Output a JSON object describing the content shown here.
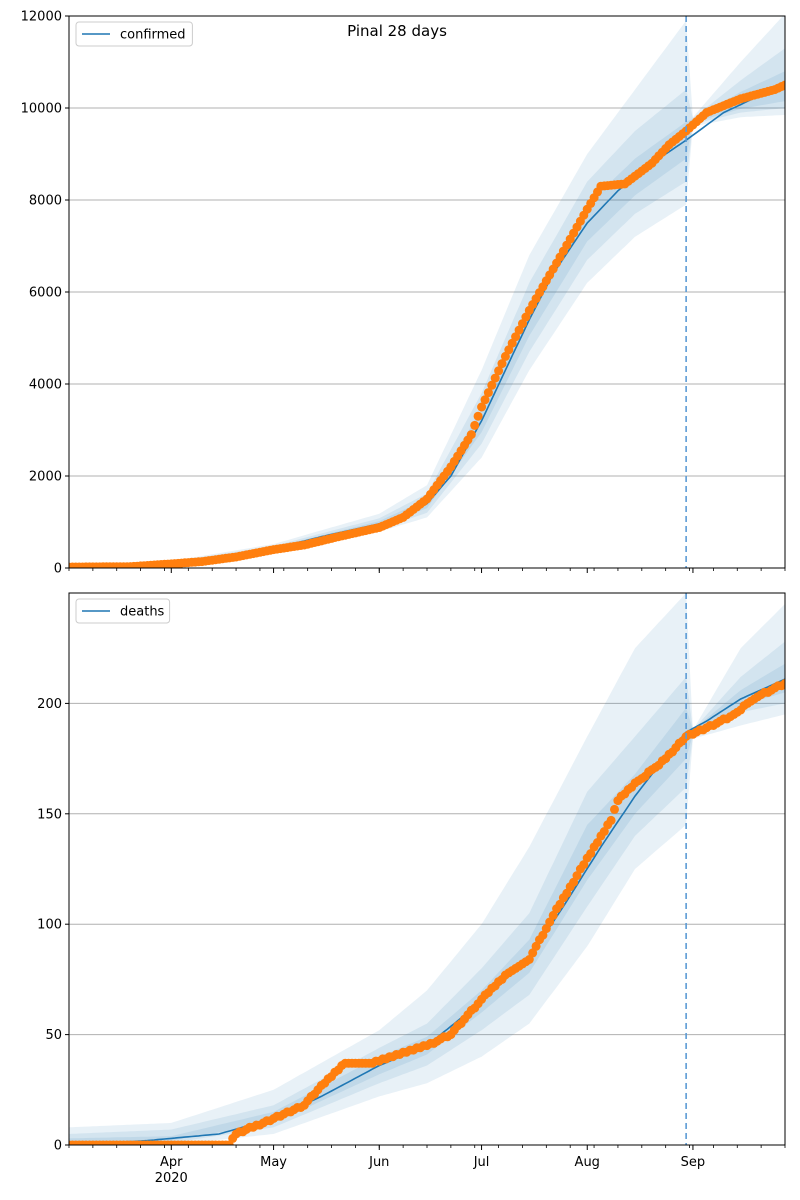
{
  "colors": {
    "model": "#1f77b4",
    "observed": "#ff7f0e",
    "grid": "#b0b0b0",
    "forecast_line": "#5b9bd5"
  },
  "chart_data": [
    {
      "type": "line",
      "title": "Pinal 28 days",
      "legend": "confirmed",
      "legend_position": "top-left",
      "grid": "horizontal",
      "ylim": [
        0,
        12000
      ],
      "yticks": [
        "0",
        "2000",
        "4000",
        "6000",
        "8000",
        "10000",
        "12000"
      ],
      "x_start": "2020-03-02",
      "x_end": "2020-09-28",
      "forecast_start": "2020-08-30",
      "xticks": [
        {
          "date": "2020-04-01",
          "label": "Apr"
        },
        {
          "date": "2020-05-01",
          "label": "May"
        },
        {
          "date": "2020-06-01",
          "label": "Jun"
        },
        {
          "date": "2020-07-01",
          "label": "Jul"
        },
        {
          "date": "2020-08-01",
          "label": "Aug"
        },
        {
          "date": "2020-09-01",
          "label": "Sep"
        }
      ],
      "year_label": "2020",
      "model_knots": [
        [
          "2020-03-02",
          0
        ],
        [
          "2020-04-01",
          100
        ],
        [
          "2020-04-15",
          180
        ],
        [
          "2020-05-01",
          420
        ],
        [
          "2020-05-15",
          680
        ],
        [
          "2020-06-01",
          960
        ],
        [
          "2020-06-08",
          1100
        ],
        [
          "2020-06-15",
          1400
        ],
        [
          "2020-06-22",
          2000
        ],
        [
          "2020-07-01",
          3200
        ],
        [
          "2020-07-08",
          4300
        ],
        [
          "2020-07-15",
          5400
        ],
        [
          "2020-07-22",
          6400
        ],
        [
          "2020-08-01",
          7500
        ],
        [
          "2020-08-10",
          8200
        ],
        [
          "2020-08-20",
          8800
        ],
        [
          "2020-08-30",
          9300
        ],
        [
          "2020-09-10",
          9900
        ],
        [
          "2020-09-20",
          10250
        ],
        [
          "2020-09-28",
          10450
        ]
      ],
      "observed": [
        [
          "2020-03-02",
          20
        ],
        [
          "2020-03-20",
          30
        ],
        [
          "2020-04-01",
          90
        ],
        [
          "2020-04-10",
          140
        ],
        [
          "2020-04-20",
          240
        ],
        [
          "2020-05-01",
          400
        ],
        [
          "2020-05-10",
          500
        ],
        [
          "2020-05-20",
          680
        ],
        [
          "2020-06-01",
          880
        ],
        [
          "2020-06-08",
          1100
        ],
        [
          "2020-06-15",
          1500
        ],
        [
          "2020-06-22",
          2200
        ],
        [
          "2020-06-28",
          2900
        ],
        [
          "2020-07-01",
          3500
        ],
        [
          "2020-07-08",
          4600
        ],
        [
          "2020-07-15",
          5600
        ],
        [
          "2020-07-22",
          6500
        ],
        [
          "2020-08-01",
          7800
        ],
        [
          "2020-08-05",
          8300
        ],
        [
          "2020-08-12",
          8350
        ],
        [
          "2020-08-20",
          8800
        ],
        [
          "2020-08-25",
          9200
        ],
        [
          "2020-08-30",
          9500
        ],
        [
          "2020-09-05",
          9900
        ],
        [
          "2020-09-15",
          10200
        ],
        [
          "2020-09-25",
          10400
        ],
        [
          "2020-09-28",
          10500
        ]
      ],
      "bands": [
        {
          "level": "outer",
          "knots": [
            [
              "2020-03-02",
              0,
              20
            ],
            [
              "2020-04-01",
              50,
              150
            ],
            [
              "2020-05-01",
              320,
              520
            ],
            [
              "2020-06-01",
              790,
              1180
            ],
            [
              "2020-06-15",
              1100,
              1800
            ],
            [
              "2020-07-01",
              2400,
              4300
            ],
            [
              "2020-07-15",
              4300,
              6800
            ],
            [
              "2020-08-01",
              6200,
              9000
            ],
            [
              "2020-08-15",
              7200,
              10400
            ],
            [
              "2020-08-30",
              7900,
              11900
            ],
            [
              "2020-09-01",
              9600,
              9800
            ],
            [
              "2020-09-15",
              9800,
              11000
            ],
            [
              "2020-09-28",
              9850,
              12050
            ]
          ]
        },
        {
          "level": "middle",
          "knots": [
            [
              "2020-03-02",
              5,
              15
            ],
            [
              "2020-04-01",
              70,
              130
            ],
            [
              "2020-05-01",
              360,
              480
            ],
            [
              "2020-06-01",
              850,
              1080
            ],
            [
              "2020-06-15",
              1200,
              1620
            ],
            [
              "2020-07-01",
              2700,
              3800
            ],
            [
              "2020-07-15",
              4700,
              6200
            ],
            [
              "2020-08-01",
              6700,
              8400
            ],
            [
              "2020-08-15",
              7700,
              9500
            ],
            [
              "2020-08-30",
              8400,
              10400
            ],
            [
              "2020-09-01",
              9650,
              9780
            ],
            [
              "2020-09-15",
              9900,
              10600
            ],
            [
              "2020-09-28",
              10000,
              11300
            ]
          ]
        },
        {
          "level": "inner",
          "knots": [
            [
              "2020-03-02",
              8,
              12
            ],
            [
              "2020-04-01",
              85,
              115
            ],
            [
              "2020-05-01",
              390,
              450
            ],
            [
              "2020-06-01",
              900,
              1020
            ],
            [
              "2020-06-15",
              1300,
              1500
            ],
            [
              "2020-07-01",
              2950,
              3450
            ],
            [
              "2020-07-15",
              5050,
              5750
            ],
            [
              "2020-08-01",
              7100,
              7900
            ],
            [
              "2020-08-15",
              8100,
              8900
            ],
            [
              "2020-08-30",
              8900,
              9700
            ],
            [
              "2020-09-01",
              9680,
              9760
            ],
            [
              "2020-09-15",
              9980,
              10350
            ],
            [
              "2020-09-28",
              10150,
              10800
            ]
          ]
        }
      ]
    },
    {
      "type": "line",
      "title": "",
      "legend": "deaths",
      "legend_position": "top-left",
      "grid": "horizontal",
      "ylim": [
        0,
        250
      ],
      "yticks": [
        "0",
        "50",
        "100",
        "150",
        "200"
      ],
      "x_start": "2020-03-02",
      "x_end": "2020-09-28",
      "forecast_start": "2020-08-30",
      "xticks": [
        {
          "date": "2020-04-01",
          "label": "Apr"
        },
        {
          "date": "2020-05-01",
          "label": "May"
        },
        {
          "date": "2020-06-01",
          "label": "Jun"
        },
        {
          "date": "2020-07-01",
          "label": "Jul"
        },
        {
          "date": "2020-08-01",
          "label": "Aug"
        },
        {
          "date": "2020-09-01",
          "label": "Sep"
        }
      ],
      "year_label": "2020",
      "model_knots": [
        [
          "2020-03-02",
          0
        ],
        [
          "2020-03-25",
          2
        ],
        [
          "2020-04-15",
          5
        ],
        [
          "2020-05-01",
          12
        ],
        [
          "2020-05-15",
          22
        ],
        [
          "2020-06-01",
          36
        ],
        [
          "2020-06-15",
          45
        ],
        [
          "2020-07-01",
          65
        ],
        [
          "2020-07-15",
          85
        ],
        [
          "2020-07-25",
          108
        ],
        [
          "2020-08-05",
          135
        ],
        [
          "2020-08-15",
          158
        ],
        [
          "2020-08-25",
          178
        ],
        [
          "2020-08-30",
          187
        ],
        [
          "2020-09-05",
          192
        ],
        [
          "2020-09-15",
          202
        ],
        [
          "2020-09-28",
          211
        ]
      ],
      "observed": [
        [
          "2020-03-02",
          0
        ],
        [
          "2020-04-18",
          0
        ],
        [
          "2020-04-20",
          5
        ],
        [
          "2020-05-01",
          12
        ],
        [
          "2020-05-10",
          18
        ],
        [
          "2020-05-15",
          27
        ],
        [
          "2020-05-22",
          37
        ],
        [
          "2020-05-30",
          37
        ],
        [
          "2020-06-01",
          38
        ],
        [
          "2020-06-15",
          45
        ],
        [
          "2020-06-22",
          50
        ],
        [
          "2020-07-01",
          66
        ],
        [
          "2020-07-08",
          77
        ],
        [
          "2020-07-15",
          84
        ],
        [
          "2020-07-22",
          104
        ],
        [
          "2020-07-29",
          122
        ],
        [
          "2020-08-05",
          140
        ],
        [
          "2020-08-08",
          147
        ],
        [
          "2020-08-10",
          156
        ],
        [
          "2020-08-15",
          164
        ],
        [
          "2020-08-22",
          172
        ],
        [
          "2020-08-27",
          180
        ],
        [
          "2020-08-30",
          185
        ],
        [
          "2020-09-05",
          189
        ],
        [
          "2020-09-12",
          194
        ],
        [
          "2020-09-20",
          203
        ],
        [
          "2020-09-28",
          209
        ]
      ],
      "bands": [
        {
          "level": "outer",
          "knots": [
            [
              "2020-03-02",
              0,
              8
            ],
            [
              "2020-04-01",
              0,
              10
            ],
            [
              "2020-05-01",
              5,
              25
            ],
            [
              "2020-06-01",
              22,
              52
            ],
            [
              "2020-06-15",
              28,
              70
            ],
            [
              "2020-07-01",
              40,
              100
            ],
            [
              "2020-07-15",
              55,
              135
            ],
            [
              "2020-08-01",
              90,
              185
            ],
            [
              "2020-08-15",
              125,
              225
            ],
            [
              "2020-08-30",
              145,
              250
            ],
            [
              "2020-09-01",
              184,
              188
            ],
            [
              "2020-09-15",
              190,
              225
            ],
            [
              "2020-09-28",
              195,
              245
            ]
          ]
        },
        {
          "level": "middle",
          "knots": [
            [
              "2020-03-02",
              0,
              5
            ],
            [
              "2020-04-01",
              1,
              7
            ],
            [
              "2020-05-01",
              8,
              18
            ],
            [
              "2020-06-01",
              28,
              44
            ],
            [
              "2020-06-15",
              36,
              55
            ],
            [
              "2020-07-01",
              52,
              80
            ],
            [
              "2020-07-15",
              68,
              105
            ],
            [
              "2020-08-01",
              108,
              160
            ],
            [
              "2020-08-15",
              140,
              185
            ],
            [
              "2020-08-30",
              162,
              212
            ],
            [
              "2020-09-01",
              185,
              188
            ],
            [
              "2020-09-15",
              196,
              212
            ],
            [
              "2020-09-28",
              200,
              228
            ]
          ]
        },
        {
          "level": "inner",
          "knots": [
            [
              "2020-03-02",
              0,
              3
            ],
            [
              "2020-04-01",
              2,
              4
            ],
            [
              "2020-05-01",
              10,
              15
            ],
            [
              "2020-06-01",
              32,
              40
            ],
            [
              "2020-06-15",
              41,
              49
            ],
            [
              "2020-07-01",
              60,
              70
            ],
            [
              "2020-07-15",
              78,
              93
            ],
            [
              "2020-08-01",
              120,
              145
            ],
            [
              "2020-08-15",
              150,
              168
            ],
            [
              "2020-08-30",
              175,
              198
            ],
            [
              "2020-09-01",
              186,
              188
            ],
            [
              "2020-09-15",
              199,
              206
            ],
            [
              "2020-09-28",
              205,
              218
            ]
          ]
        }
      ]
    }
  ]
}
